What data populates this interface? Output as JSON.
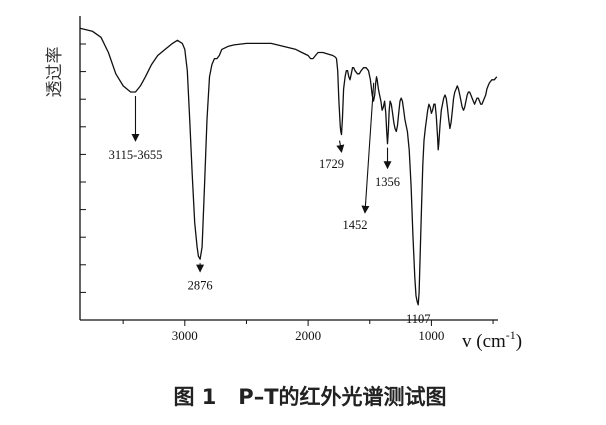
{
  "chart_data": {
    "type": "line",
    "ylabel": "透过率",
    "xlabel": {
      "main": "v (cm",
      "sup": "-1",
      "close": ")"
    },
    "caption": "图 1   P–T的红外光谱测试图",
    "x_axis": {
      "range": [
        3850,
        460
      ],
      "reversed": true,
      "ticks": [
        3000,
        2000,
        1000
      ]
    },
    "y_axis": {
      "range": [
        0,
        100
      ],
      "tick_labels": false,
      "tick_count": 11
    },
    "series": [
      {
        "points": [
          [
            3850,
            96
          ],
          [
            3750,
            95
          ],
          [
            3680,
            93
          ],
          [
            3620,
            88
          ],
          [
            3560,
            81
          ],
          [
            3500,
            77
          ],
          [
            3440,
            75
          ],
          [
            3400,
            75
          ],
          [
            3360,
            77
          ],
          [
            3320,
            80
          ],
          [
            3270,
            84
          ],
          [
            3220,
            87
          ],
          [
            3160,
            89
          ],
          [
            3100,
            91
          ],
          [
            3060,
            92
          ],
          [
            3020,
            91
          ],
          [
            3000,
            89
          ],
          [
            2980,
            82
          ],
          [
            2960,
            66
          ],
          [
            2940,
            48
          ],
          [
            2920,
            32
          ],
          [
            2900,
            24
          ],
          [
            2890,
            21
          ],
          [
            2876,
            20
          ],
          [
            2860,
            24
          ],
          [
            2840,
            44
          ],
          [
            2820,
            66
          ],
          [
            2800,
            80
          ],
          [
            2780,
            84
          ],
          [
            2760,
            86
          ],
          [
            2740,
            86
          ],
          [
            2720,
            87
          ],
          [
            2700,
            89
          ],
          [
            2650,
            90
          ],
          [
            2600,
            90.5
          ],
          [
            2500,
            91
          ],
          [
            2400,
            91
          ],
          [
            2300,
            91
          ],
          [
            2200,
            90
          ],
          [
            2100,
            89
          ],
          [
            2050,
            88
          ],
          [
            2000,
            87
          ],
          [
            1980,
            86
          ],
          [
            1960,
            86
          ],
          [
            1940,
            87
          ],
          [
            1920,
            88
          ],
          [
            1880,
            88
          ],
          [
            1840,
            87.5
          ],
          [
            1800,
            87
          ],
          [
            1780,
            86.5
          ],
          [
            1770,
            86
          ],
          [
            1760,
            82
          ],
          [
            1750,
            72
          ],
          [
            1740,
            64
          ],
          [
            1735,
            62
          ],
          [
            1729,
            61
          ],
          [
            1722,
            66
          ],
          [
            1712,
            76
          ],
          [
            1700,
            80
          ],
          [
            1690,
            82
          ],
          [
            1680,
            82
          ],
          [
            1670,
            80
          ],
          [
            1660,
            79
          ],
          [
            1650,
            81
          ],
          [
            1640,
            83
          ],
          [
            1630,
            83
          ],
          [
            1620,
            82
          ],
          [
            1600,
            81
          ],
          [
            1585,
            81
          ],
          [
            1570,
            82
          ],
          [
            1550,
            83
          ],
          [
            1530,
            83
          ],
          [
            1510,
            82
          ],
          [
            1495,
            79
          ],
          [
            1480,
            74
          ],
          [
            1470,
            72
          ],
          [
            1460,
            74
          ],
          [
            1452,
            78
          ],
          [
            1445,
            80
          ],
          [
            1440,
            79
          ],
          [
            1430,
            76
          ],
          [
            1420,
            74
          ],
          [
            1410,
            72
          ],
          [
            1400,
            69
          ],
          [
            1390,
            70
          ],
          [
            1380,
            72
          ],
          [
            1370,
            68
          ],
          [
            1363,
            62
          ],
          [
            1356,
            58
          ],
          [
            1350,
            62
          ],
          [
            1342,
            69
          ],
          [
            1335,
            72
          ],
          [
            1325,
            71
          ],
          [
            1315,
            68
          ],
          [
            1305,
            65
          ],
          [
            1295,
            63
          ],
          [
            1285,
            62
          ],
          [
            1275,
            64
          ],
          [
            1265,
            68
          ],
          [
            1255,
            72
          ],
          [
            1245,
            73
          ],
          [
            1235,
            72
          ],
          [
            1225,
            69
          ],
          [
            1215,
            66
          ],
          [
            1205,
            64
          ],
          [
            1195,
            62
          ],
          [
            1180,
            56
          ],
          [
            1165,
            44
          ],
          [
            1150,
            28
          ],
          [
            1135,
            14
          ],
          [
            1125,
            8
          ],
          [
            1115,
            6
          ],
          [
            1107,
            5
          ],
          [
            1100,
            9
          ],
          [
            1090,
            23
          ],
          [
            1080,
            38
          ],
          [
            1070,
            51
          ],
          [
            1060,
            59
          ],
          [
            1050,
            63
          ],
          [
            1040,
            66
          ],
          [
            1030,
            69
          ],
          [
            1020,
            71
          ],
          [
            1010,
            70
          ],
          [
            1000,
            68
          ],
          [
            990,
            69
          ],
          [
            980,
            71
          ],
          [
            970,
            71
          ],
          [
            960,
            67
          ],
          [
            950,
            60
          ],
          [
            945,
            56
          ],
          [
            940,
            58
          ],
          [
            930,
            64
          ],
          [
            920,
            69
          ],
          [
            910,
            71
          ],
          [
            900,
            73
          ],
          [
            890,
            74
          ],
          [
            880,
            73
          ],
          [
            870,
            70
          ],
          [
            860,
            66
          ],
          [
            850,
            63
          ],
          [
            840,
            65
          ],
          [
            830,
            69
          ],
          [
            820,
            73
          ],
          [
            810,
            75
          ],
          [
            800,
            76
          ],
          [
            790,
            77
          ],
          [
            780,
            76
          ],
          [
            770,
            74
          ],
          [
            760,
            72
          ],
          [
            750,
            70
          ],
          [
            740,
            69
          ],
          [
            730,
            70
          ],
          [
            720,
            72
          ],
          [
            710,
            74
          ],
          [
            700,
            75
          ],
          [
            690,
            75
          ],
          [
            680,
            74
          ],
          [
            670,
            73
          ],
          [
            660,
            72
          ],
          [
            650,
            71
          ],
          [
            640,
            72
          ],
          [
            630,
            73
          ],
          [
            620,
            73
          ],
          [
            610,
            72
          ],
          [
            600,
            71
          ],
          [
            590,
            71
          ],
          [
            580,
            72
          ],
          [
            570,
            73
          ],
          [
            560,
            74
          ],
          [
            550,
            76
          ],
          [
            540,
            77
          ],
          [
            530,
            78
          ],
          [
            520,
            78.5
          ],
          [
            510,
            79
          ],
          [
            500,
            79
          ],
          [
            490,
            79
          ],
          [
            480,
            79.5
          ],
          [
            470,
            80
          ]
        ]
      }
    ],
    "annotations": [
      {
        "text": "3115-3655",
        "target": [
          3400,
          75
        ],
        "arrow": "down",
        "label_at": [
          3400,
          53
        ]
      },
      {
        "text": "2876",
        "target": [
          2876,
          20
        ],
        "arrow": "down",
        "label_at": [
          2876,
          10
        ]
      },
      {
        "text": "1729",
        "target": [
          1729,
          61
        ],
        "arrow": "down-left",
        "label_at": [
          1810,
          50
        ]
      },
      {
        "text": "1452",
        "target": [
          1452,
          80
        ],
        "arrow": "down-left",
        "label_at": [
          1620,
          30
        ]
      },
      {
        "text": "1356",
        "target": [
          1356,
          58
        ],
        "arrow": "down",
        "label_at": [
          1356,
          44
        ]
      },
      {
        "text": "1107",
        "target": [
          1107,
          5
        ],
        "arrow": "none",
        "label_at": [
          1107,
          -1
        ]
      }
    ]
  }
}
